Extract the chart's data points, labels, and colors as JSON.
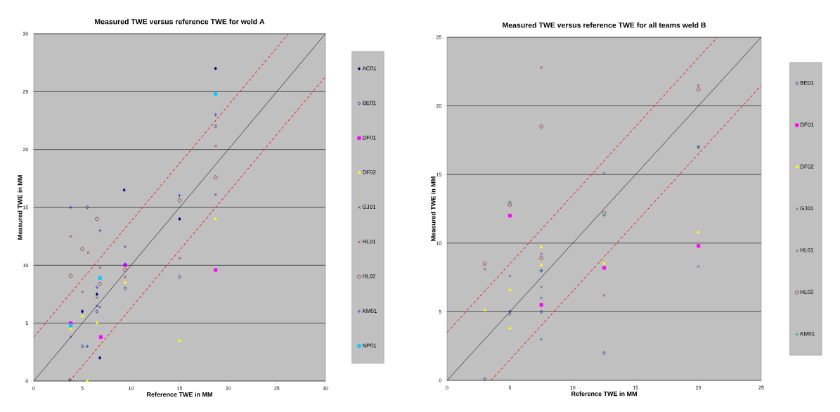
{
  "chart_data": [
    {
      "type": "scatter",
      "title": "Measured TWE versus reference TWE for weld A",
      "xlabel": "Reference TWE in MM",
      "ylabel": "Measured TWE in MM",
      "xlim": [
        0,
        30
      ],
      "ylim": [
        0,
        30
      ],
      "xticks": [
        0,
        5,
        10,
        15,
        20,
        25,
        30
      ],
      "yticks": [
        0,
        5,
        10,
        15,
        20,
        25,
        30
      ],
      "grid": "y",
      "legend": "right",
      "series": [
        {
          "name": "AC01",
          "color": "#000080",
          "x": [
            5,
            6.5,
            6.8,
            9.3,
            15,
            18.7
          ],
          "values": [
            6,
            7.5,
            2,
            16.5,
            14,
            27
          ]
        },
        {
          "name": "BE01",
          "color": "#000080",
          "marker": "diamond",
          "x": [
            3.7,
            5,
            5.5,
            6.5,
            9.4,
            15,
            18.7
          ],
          "values": [
            0.1,
            3,
            15,
            6,
            8,
            9,
            22
          ]
        },
        {
          "name": "DF01",
          "color": "#ff00ff",
          "marker": "square",
          "x": [
            3.8,
            6.9,
            9.4,
            18.7
          ],
          "values": [
            5,
            3.8,
            10,
            9.6
          ]
        },
        {
          "name": "DF02",
          "color": "#ffff00",
          "marker": "triangle",
          "x": [
            3.8,
            5,
            5.5,
            6.5,
            9.4,
            15,
            18.7
          ],
          "values": [
            4.5,
            5.6,
            0,
            5,
            8.5,
            3.5,
            14
          ]
        },
        {
          "name": "GJ01",
          "color": "#000080",
          "marker": "cross",
          "x": [
            3.8,
            5,
            6.5,
            6.8,
            9.4,
            18.7
          ],
          "values": [
            3.8,
            6.1,
            6.5,
            6.4,
            11.6,
            16.1
          ]
        },
        {
          "name": "HL01",
          "color": "#800000",
          "marker": "cross",
          "x": [
            3.8,
            5,
            5.6,
            6.5,
            6.8,
            9.4,
            15,
            18.7
          ],
          "values": [
            12.5,
            7.7,
            11.1,
            7.2,
            9.8,
            9,
            10.6,
            20.3
          ]
        },
        {
          "name": "HL02",
          "color": "#800000",
          "marker": "circle",
          "x": [
            3.8,
            5,
            6.5,
            6.8,
            9.4,
            15,
            18.7
          ],
          "values": [
            9.1,
            11.4,
            14,
            8.4,
            9.6,
            15.6,
            17.6
          ]
        },
        {
          "name": "KM01",
          "color": "#0000ff",
          "marker": "plus",
          "x": [
            3.8,
            5.5,
            6.5,
            6.8,
            9.4,
            15,
            18.7
          ],
          "values": [
            15,
            3,
            8.1,
            13,
            10.1,
            16,
            23
          ]
        },
        {
          "name": "NP01",
          "color": "#00ccff",
          "marker": "square",
          "x": [
            3.8,
            6.8,
            18.7
          ],
          "values": [
            4.8,
            8.9,
            24.8
          ]
        },
        {
          "type": "line",
          "color": "#000000",
          "line_style": "solid",
          "x": [
            0,
            30
          ],
          "values": [
            0,
            30
          ]
        },
        {
          "type": "line",
          "color": "#ff0000",
          "line_style": "dashed",
          "x": [
            0,
            26.2
          ],
          "values": [
            3.8,
            30
          ]
        },
        {
          "type": "line",
          "color": "#ff0000",
          "line_style": "dashed",
          "x": [
            3.7,
            30
          ],
          "values": [
            0,
            26.3
          ]
        }
      ]
    },
    {
      "type": "scatter",
      "title": "Measured TWE versus reference TWE for all teams weld B",
      "xlabel": "Reference TWE in MM",
      "ylabel": "Measured TWE in MM",
      "xlim": [
        0,
        25
      ],
      "ylim": [
        0,
        25
      ],
      "xticks": [
        0,
        5,
        10,
        15,
        20,
        25
      ],
      "yticks": [
        0,
        5,
        10,
        15,
        20,
        25
      ],
      "grid": "y",
      "legend": "right",
      "series": [
        {
          "name": "BE01",
          "color": "#000080",
          "marker": "diamond",
          "x": [
            3,
            5,
            7.5,
            7.5,
            12.5,
            20
          ],
          "values": [
            0.1,
            5,
            5,
            8,
            2,
            17
          ]
        },
        {
          "name": "DF01",
          "color": "#ff00ff",
          "marker": "square",
          "x": [
            5,
            7.5,
            12.5,
            20
          ],
          "values": [
            12,
            5.5,
            8.2,
            9.8
          ]
        },
        {
          "name": "DF02",
          "color": "#ffff00",
          "marker": "triangle",
          "x": [
            3,
            5,
            5,
            7.5,
            7.5,
            12.5,
            20
          ],
          "values": [
            5.1,
            6.6,
            3.8,
            9.7,
            8.4,
            8.5,
            10.8
          ]
        },
        {
          "name": "GJ01",
          "color": "#333399",
          "marker": "cross",
          "x": [
            5,
            7.5,
            7.5,
            12.5,
            20
          ],
          "values": [
            4.8,
            6.8,
            6,
            15.1,
            8.3
          ]
        },
        {
          "name": "HL01",
          "color": "#800080",
          "marker": "cross",
          "x": [
            3,
            5,
            7.5,
            7.5,
            12.5,
            20
          ],
          "values": [
            8.1,
            7.6,
            22.8,
            9.2,
            6.2,
            21.5
          ]
        },
        {
          "name": "HL02",
          "color": "#800000",
          "marker": "circle",
          "x": [
            3,
            5,
            7.5,
            7.5,
            12.5,
            20
          ],
          "values": [
            8.5,
            12.8,
            18.5,
            8.9,
            12.2,
            21.2
          ]
        },
        {
          "name": "KM01",
          "color": "#008080",
          "marker": "plus",
          "x": [
            5,
            7.5,
            7.5,
            12.5,
            20
          ],
          "values": [
            13,
            8,
            3,
            12,
            17
          ]
        },
        {
          "type": "line",
          "color": "#000000",
          "line_style": "solid",
          "x": [
            0,
            25
          ],
          "values": [
            0,
            25
          ]
        },
        {
          "type": "line",
          "color": "#ff0000",
          "line_style": "dashed",
          "x": [
            0,
            21.5
          ],
          "values": [
            3.5,
            25
          ]
        },
        {
          "type": "line",
          "color": "#ff0000",
          "line_style": "dashed",
          "x": [
            3.5,
            25
          ],
          "values": [
            0,
            21.5
          ]
        }
      ]
    }
  ]
}
